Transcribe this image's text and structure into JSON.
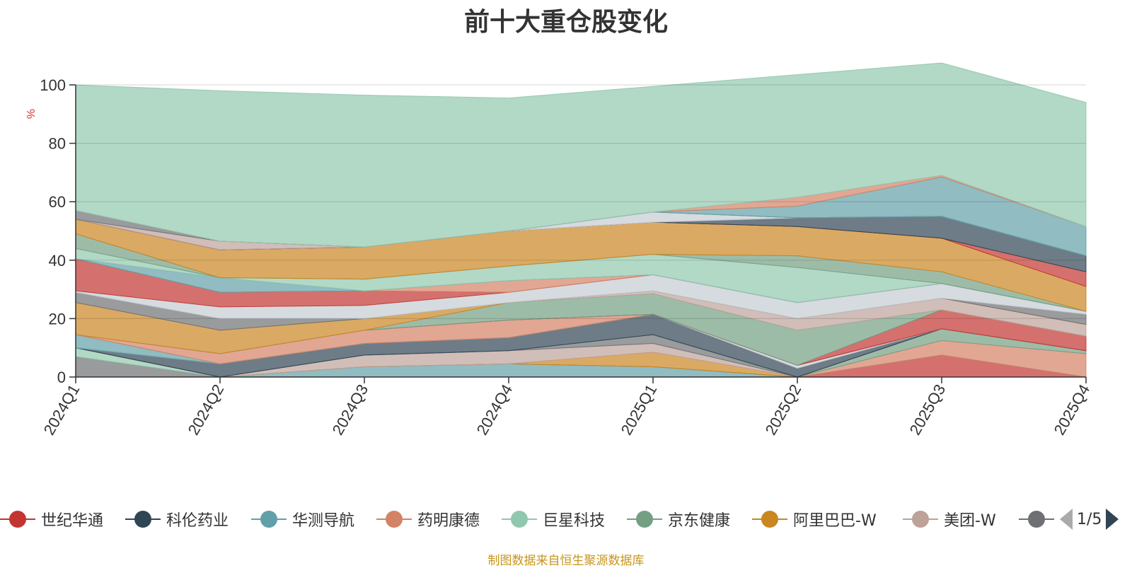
{
  "chart_data": {
    "type": "area",
    "title": "前十大重仓股变化",
    "ylabel": "%",
    "ylim": [
      0,
      100
    ],
    "yticks": [
      0,
      20,
      40,
      60,
      80,
      100
    ],
    "categories": [
      "2024Q1",
      "2024Q2",
      "2024Q3",
      "2024Q4",
      "2025Q1",
      "2025Q2",
      "2025Q3",
      "2025Q4"
    ],
    "grid": true,
    "layers": [
      {
        "color": "#6e7074",
        "values": [
          7,
          0,
          0,
          0,
          0,
          0,
          0,
          0
        ]
      },
      {
        "color": "#91c7ae",
        "values": [
          3,
          0,
          0,
          0,
          0,
          0,
          0,
          0
        ]
      },
      {
        "color": "#c23531",
        "values": [
          0,
          0,
          0,
          0,
          0,
          0,
          7.5,
          0
        ]
      },
      {
        "color": "#61a0a8",
        "values": [
          0,
          0,
          3.5,
          4.5,
          3.5,
          0,
          0,
          0
        ]
      },
      {
        "color": "#d48265",
        "values": [
          0,
          0,
          0,
          0,
          0,
          0,
          5,
          8
        ]
      },
      {
        "color": "#749f83",
        "values": [
          0,
          0,
          0,
          0,
          0,
          0,
          4,
          1
        ]
      },
      {
        "color": "#ca8622",
        "values": [
          0,
          0,
          0,
          0,
          5,
          0,
          0,
          0
        ]
      },
      {
        "color": "#bda29a",
        "values": [
          0,
          0,
          4,
          4.5,
          3,
          0,
          0,
          0
        ]
      },
      {
        "color": "#6e7074",
        "values": [
          0,
          0,
          0,
          0,
          3,
          0,
          0,
          0
        ]
      },
      {
        "color": "#2f4554",
        "values": [
          0,
          4.5,
          4,
          4.5,
          7,
          3,
          0,
          0
        ]
      },
      {
        "color": "#c4ccd3",
        "values": [
          0,
          0,
          0,
          0,
          0,
          1,
          0,
          0
        ]
      },
      {
        "color": "#61a0a8",
        "values": [
          4.5,
          0,
          0,
          0,
          0,
          0,
          0,
          0
        ]
      },
      {
        "color": "#d48265",
        "values": [
          0,
          3.5,
          4.5,
          6,
          0,
          0,
          0,
          0
        ]
      },
      {
        "color": "#c23531",
        "values": [
          0,
          0,
          0,
          0,
          0,
          0,
          6.5,
          5
        ]
      },
      {
        "color": "#749f83",
        "values": [
          0,
          0,
          0,
          6,
          7,
          12,
          0,
          0
        ]
      },
      {
        "color": "#bda29a",
        "values": [
          0,
          0,
          0,
          0,
          1,
          4,
          4,
          4
        ]
      },
      {
        "color": "#ca8622",
        "values": [
          11,
          8,
          4,
          0,
          0,
          0,
          0,
          0
        ]
      },
      {
        "color": "#6e7074",
        "values": [
          3.5,
          4,
          0,
          0,
          0,
          0,
          0,
          3.5
        ]
      },
      {
        "color": "#c4ccd3",
        "values": [
          0.5,
          4,
          4.5,
          3.5,
          5.5,
          5.5,
          5,
          1
        ]
      },
      {
        "color": "#c23531",
        "values": [
          11,
          5,
          5,
          0,
          0,
          0,
          0,
          0
        ]
      },
      {
        "color": "#d48265",
        "values": [
          0,
          0,
          0,
          4,
          0,
          0,
          0,
          0
        ]
      },
      {
        "color": "#61a0a8",
        "values": [
          0,
          5,
          0,
          0,
          0,
          0,
          0,
          0
        ]
      },
      {
        "color": "#91c7ae",
        "values": [
          3.5,
          0,
          4,
          5,
          7,
          12,
          0,
          0
        ]
      },
      {
        "color": "#749f83",
        "values": [
          5,
          0,
          0,
          0,
          0,
          4,
          4,
          0
        ]
      },
      {
        "color": "#ca8622",
        "values": [
          5,
          9.5,
          11,
          12,
          11,
          10,
          11.5,
          8.5
        ]
      },
      {
        "color": "#c23531",
        "values": [
          0,
          0,
          0,
          0,
          0,
          0,
          0,
          5
        ]
      },
      {
        "color": "#2f4554",
        "values": [
          0,
          0,
          0,
          0,
          0,
          3,
          7.5,
          5.5
        ]
      },
      {
        "color": "#bda29a",
        "values": [
          0,
          3,
          0,
          0,
          0,
          0,
          0,
          0
        ]
      },
      {
        "color": "#c4ccd3",
        "values": [
          0,
          0,
          0,
          0,
          3.5,
          0,
          0,
          0
        ]
      },
      {
        "color": "#6e7074",
        "values": [
          3,
          0,
          0,
          0,
          0,
          0,
          0,
          0
        ]
      },
      {
        "color": "#61a0a8",
        "values": [
          0,
          0,
          0,
          0,
          0,
          4,
          13.5,
          10
        ]
      },
      {
        "color": "#d48265",
        "values": [
          0,
          0,
          0,
          0,
          0,
          3,
          0.5,
          0
        ]
      },
      {
        "color": "#91c7ae",
        "values": [
          43,
          51.5,
          52,
          45.5,
          43,
          42,
          38.5,
          42.5
        ]
      }
    ]
  },
  "legend": {
    "items": [
      {
        "label": "世纪华通",
        "color": "#c23531"
      },
      {
        "label": "科伦药业",
        "color": "#2f4554"
      },
      {
        "label": "华测导航",
        "color": "#61a0a8"
      },
      {
        "label": "药明康德",
        "color": "#d48265"
      },
      {
        "label": "巨星科技",
        "color": "#91c7ae"
      },
      {
        "label": "京东健康",
        "color": "#749f83"
      },
      {
        "label": "阿里巴巴-W",
        "color": "#ca8622"
      },
      {
        "label": "美团-W",
        "color": "#bda29a"
      },
      {
        "label": "",
        "color": "#6e7074"
      }
    ],
    "page": "1/5"
  },
  "source": "制图数据来自恒生聚源数据库"
}
